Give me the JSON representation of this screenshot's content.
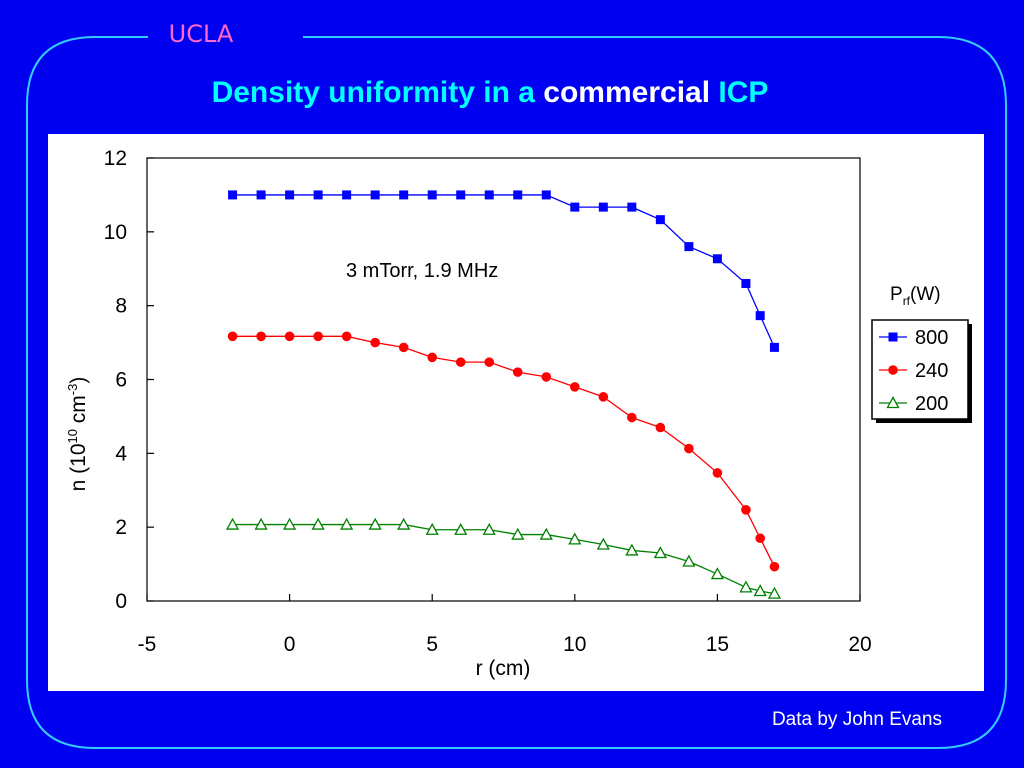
{
  "brand": "UCLA",
  "title": {
    "part1": "Density uniformity in a ",
    "part2": "commercial",
    "part3": " ICP"
  },
  "credit": "Data by John Evans",
  "colors": {
    "background": "#0000f0",
    "frame": "#33ccff",
    "title": "#00ffff",
    "brand": "#ff66cc"
  },
  "chart_data": {
    "type": "line",
    "title": "",
    "annotation": "3 mTorr, 1.9 MHz",
    "xlabel": "r (cm)",
    "ylabel": {
      "base": "n (10",
      "sup1": "10",
      "mid": " cm",
      "sup2": "-3",
      "end": ")"
    },
    "xlim": [
      -5,
      20
    ],
    "ylim": [
      0,
      12
    ],
    "xticks": [
      -5,
      0,
      5,
      10,
      15,
      20
    ],
    "yticks": [
      0,
      2,
      4,
      6,
      8,
      10,
      12
    ],
    "grid": false,
    "legend": {
      "placement": "right",
      "title_base": "P",
      "title_sub": "rf",
      "title_end": "(W)"
    },
    "series": [
      {
        "name": "800",
        "color": "#0000ff",
        "marker": "square",
        "x": [
          -2,
          -1,
          0,
          1,
          2,
          3,
          4,
          5,
          6,
          7,
          8,
          9,
          10,
          11,
          12,
          13,
          14,
          15,
          16,
          16.5,
          17
        ],
        "y": [
          11,
          11,
          11,
          11,
          11,
          11,
          11,
          11,
          11,
          11,
          11,
          11,
          10.67,
          10.67,
          10.67,
          10.33,
          9.6,
          9.27,
          8.6,
          7.73,
          6.87
        ]
      },
      {
        "name": "240",
        "color": "#ff0000",
        "marker": "circle",
        "x": [
          -2,
          -1,
          0,
          1,
          2,
          3,
          4,
          5,
          6,
          7,
          8,
          9,
          10,
          11,
          12,
          13,
          14,
          15,
          16,
          16.5,
          17
        ],
        "y": [
          7.17,
          7.17,
          7.17,
          7.17,
          7.17,
          7.0,
          6.87,
          6.6,
          6.47,
          6.47,
          6.2,
          6.07,
          5.8,
          5.53,
          4.97,
          4.7,
          4.13,
          3.47,
          2.47,
          1.7,
          0.93
        ]
      },
      {
        "name": "200",
        "color": "#008000",
        "marker": "triangle",
        "x": [
          -2,
          -1,
          0,
          1,
          2,
          3,
          4,
          5,
          6,
          7,
          8,
          9,
          10,
          11,
          12,
          13,
          14,
          15,
          16,
          16.5,
          17
        ],
        "y": [
          2.07,
          2.07,
          2.07,
          2.07,
          2.07,
          2.07,
          2.07,
          1.93,
          1.93,
          1.93,
          1.8,
          1.8,
          1.67,
          1.53,
          1.37,
          1.3,
          1.07,
          0.73,
          0.37,
          0.27,
          0.2
        ]
      }
    ]
  }
}
